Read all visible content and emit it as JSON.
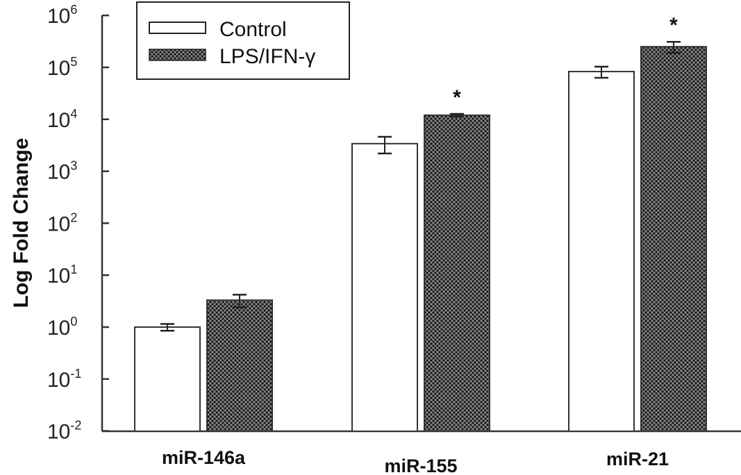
{
  "chart_data": {
    "type": "bar",
    "title": "",
    "xlabel": "",
    "ylabel": "Log Fold Change",
    "yscale": "log",
    "ylim": [
      0.01,
      1000000
    ],
    "yticks": [
      {
        "base": "10",
        "exp": "6"
      },
      {
        "base": "10",
        "exp": "5"
      },
      {
        "base": "10",
        "exp": "4"
      },
      {
        "base": "10",
        "exp": "3"
      },
      {
        "base": "10",
        "exp": "2"
      },
      {
        "base": "10",
        "exp": "1"
      },
      {
        "base": "10",
        "exp": "0"
      },
      {
        "base": "10",
        "exp": "-1"
      },
      {
        "base": "10",
        "exp": "-2"
      }
    ],
    "categories": [
      "miR-146a",
      "miR-155",
      "miR-21"
    ],
    "series": [
      {
        "name": "Control",
        "values": [
          1.0,
          3400,
          83000
        ],
        "errors": [
          0.15,
          1200,
          20000
        ],
        "fill": "#ffffff"
      },
      {
        "name": "LPS/IFN-γ",
        "values": [
          3.3,
          12000,
          250000
        ],
        "errors": [
          0.9,
          700,
          60000
        ],
        "fill": "crosshatch"
      }
    ],
    "significance": [
      {
        "category": "miR-155",
        "series": "LPS/IFN-γ",
        "mark": "*"
      },
      {
        "category": "miR-21",
        "series": "LPS/IFN-γ",
        "mark": "*"
      }
    ],
    "legend": {
      "position": "top-left",
      "entries": [
        "Control",
        "LPS/IFN-γ"
      ]
    },
    "grid": false
  }
}
